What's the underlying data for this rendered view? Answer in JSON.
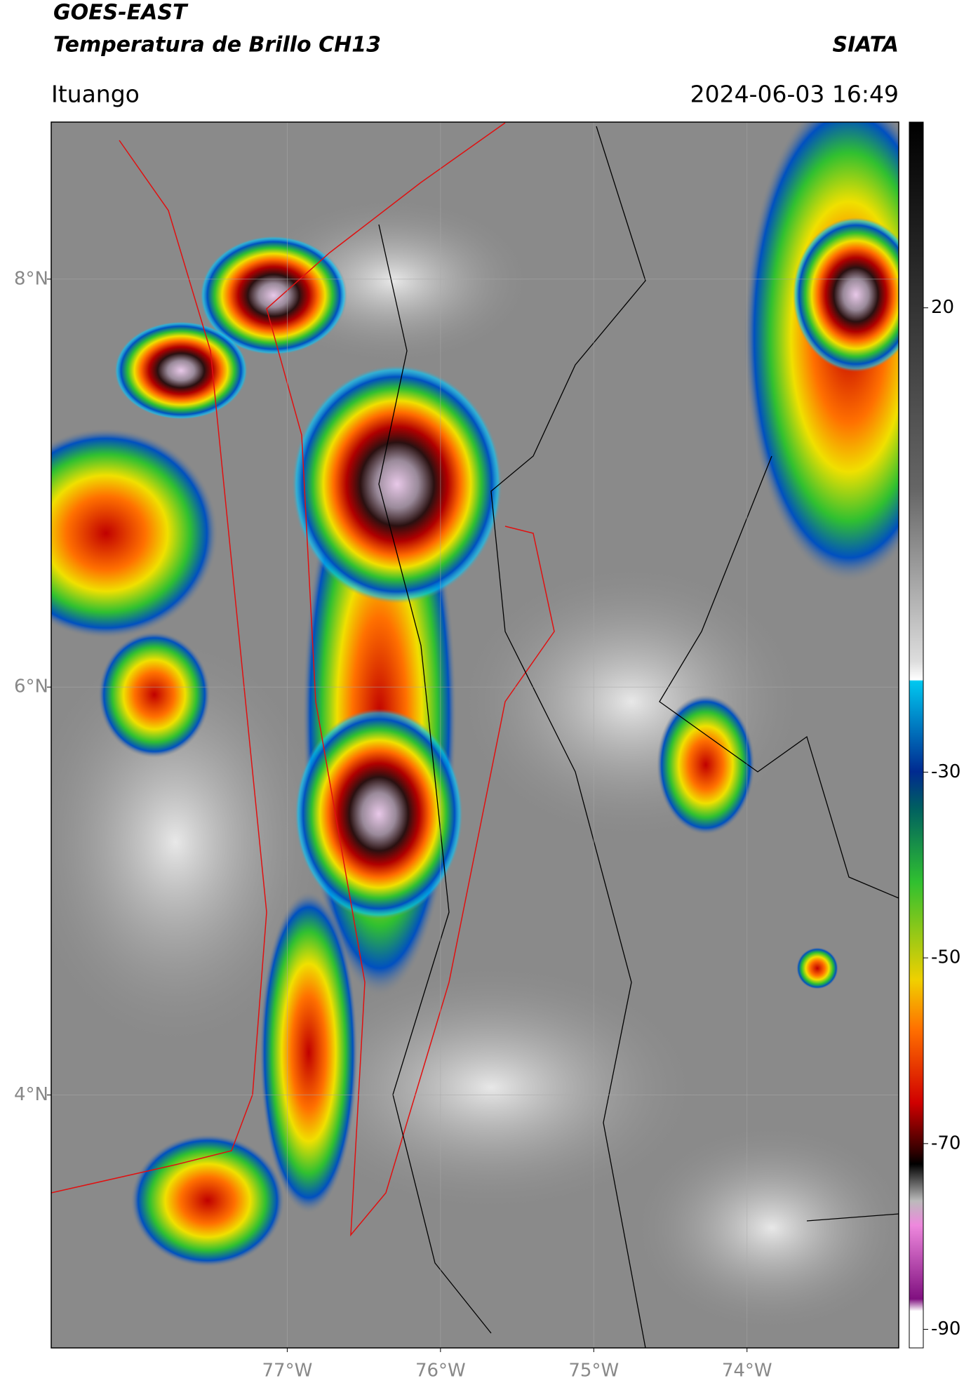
{
  "header": {
    "title": "GOES-EAST",
    "subtitle": "Temperatura de Brillo CH13",
    "agency": "SIATA",
    "location": "Ituango",
    "datetime": "2024-06-03 16:49"
  },
  "map": {
    "xlim": [
      -78.54,
      -73.01
    ],
    "ylim": [
      2.76,
      8.77
    ],
    "xticks": [
      {
        "value": -77,
        "label": "77°W"
      },
      {
        "value": -76,
        "label": "76°W"
      },
      {
        "value": -75,
        "label": "75°W"
      },
      {
        "value": -74,
        "label": "74°W"
      }
    ],
    "yticks": [
      {
        "value": 8,
        "label": "8°N"
      },
      {
        "value": 6,
        "label": "6°N"
      },
      {
        "value": 4,
        "label": "4°N"
      }
    ],
    "grid": true
  },
  "colorbar": {
    "lim": [
      -92,
      40
    ],
    "ticks": [
      20,
      -30,
      -50,
      -70,
      -90
    ]
  }
}
